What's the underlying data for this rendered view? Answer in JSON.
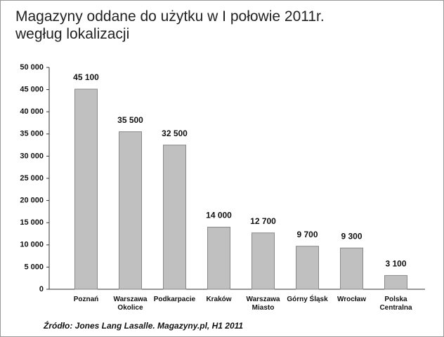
{
  "chart_data": {
    "type": "bar",
    "title": [
      "Magazyny oddane do użytku w I połowie 2011r.",
      "wegług lokalizacji"
    ],
    "source": "Źródło: Jones Lang Lasalle. Magazyny.pl, H1 2011",
    "categories": [
      "Poznań",
      "Warszawa\nOkolice",
      "Podkarpacie",
      "Kraków",
      "Warszawa\nMiasto",
      "Górny Śląsk",
      "Wrocław",
      "Polska\nCentralna"
    ],
    "values": [
      45100,
      35500,
      32500,
      14000,
      12700,
      9700,
      9300,
      3100
    ],
    "value_labels": [
      "45 100",
      "35 500",
      "32 500",
      "14 000",
      "12 700",
      "9 700",
      "9 300",
      "3 100"
    ],
    "color": "#c0c0c0",
    "ylim": [
      0,
      50000
    ],
    "yticks": [
      0,
      {
        "value": 5000,
        "label": "5 000"
      },
      {
        "value": 10000,
        "label": "10 000"
      },
      {
        "value": 15000,
        "label": "15 000"
      },
      {
        "value": 20000,
        "label": "20 000"
      },
      {
        "value": 25000,
        "label": "25 000"
      },
      {
        "value": 30000,
        "label": "30 000"
      },
      {
        "value": 35000,
        "label": "35 000"
      },
      {
        "value": 40000,
        "label": "40 000"
      },
      {
        "value": 45000,
        "label": "45 000"
      },
      {
        "value": 50000,
        "label": "50 000"
      }
    ]
  }
}
